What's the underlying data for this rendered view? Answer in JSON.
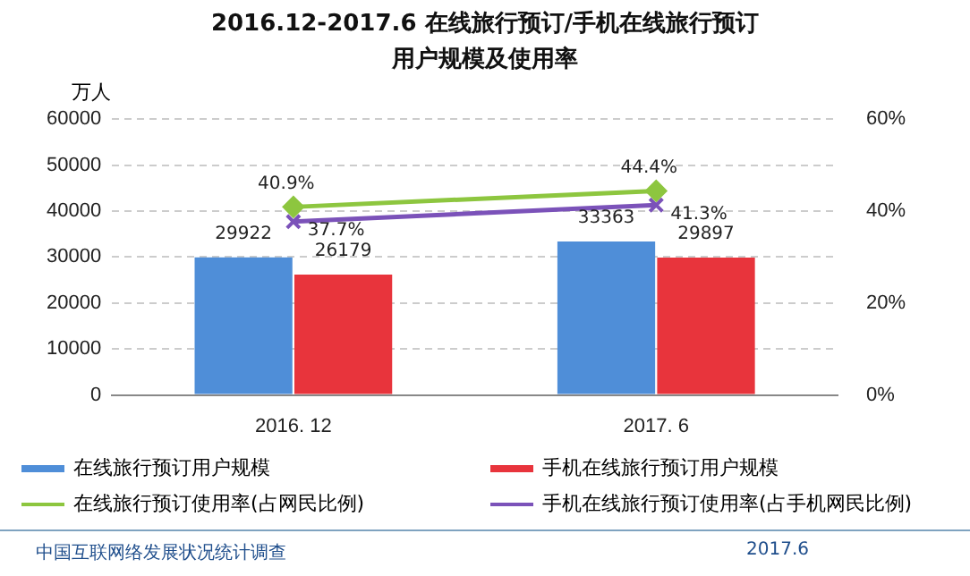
{
  "chart_data": {
    "type": "bar",
    "title": "2016.12-2017.6 在线旅行预订/手机在线旅行预订用户规模及使用率",
    "ylabel": "万人",
    "categories": [
      "2016. 12",
      "2017. 6"
    ],
    "series": [
      {
        "name": "在线旅行预订用户规模",
        "color": "#4f8ed8",
        "values": [
          29922,
          33363
        ]
      },
      {
        "name": "手机在线旅行预订用户规模",
        "color": "#e8343c",
        "values": [
          26179,
          29897
        ]
      },
      {
        "name": "在线旅行预订使用率(占网民比例)",
        "type": "line",
        "axis": "y2",
        "color": "#8dc63f",
        "marker": "diamond",
        "values": [
          40.9,
          44.4
        ],
        "value_labels": [
          "40.9%",
          "44.4%"
        ]
      },
      {
        "name": "手机在线旅行预订使用率(占手机网民比例)",
        "type": "line",
        "axis": "y2",
        "color": "#7b52b9",
        "marker": "cross",
        "values": [
          37.7,
          41.3
        ],
        "value_labels": [
          "37.7%",
          "41.3%"
        ]
      }
    ],
    "ylim": [
      0,
      60000
    ],
    "yticks": [
      0,
      10000,
      20000,
      30000,
      40000,
      50000,
      60000
    ],
    "y2lim": [
      0,
      60
    ],
    "y2ticks": [
      {
        "value": 0,
        "label": "0%"
      },
      {
        "value": 20,
        "label": "20%"
      },
      {
        "value": 40,
        "label": "40%"
      },
      {
        "value": 60,
        "label": "60%"
      }
    ],
    "grid": "y",
    "legend": "bottom",
    "data_labels": true,
    "annotations": [
      "中国互联网络发展状况统计调查",
      "2017.6"
    ]
  }
}
